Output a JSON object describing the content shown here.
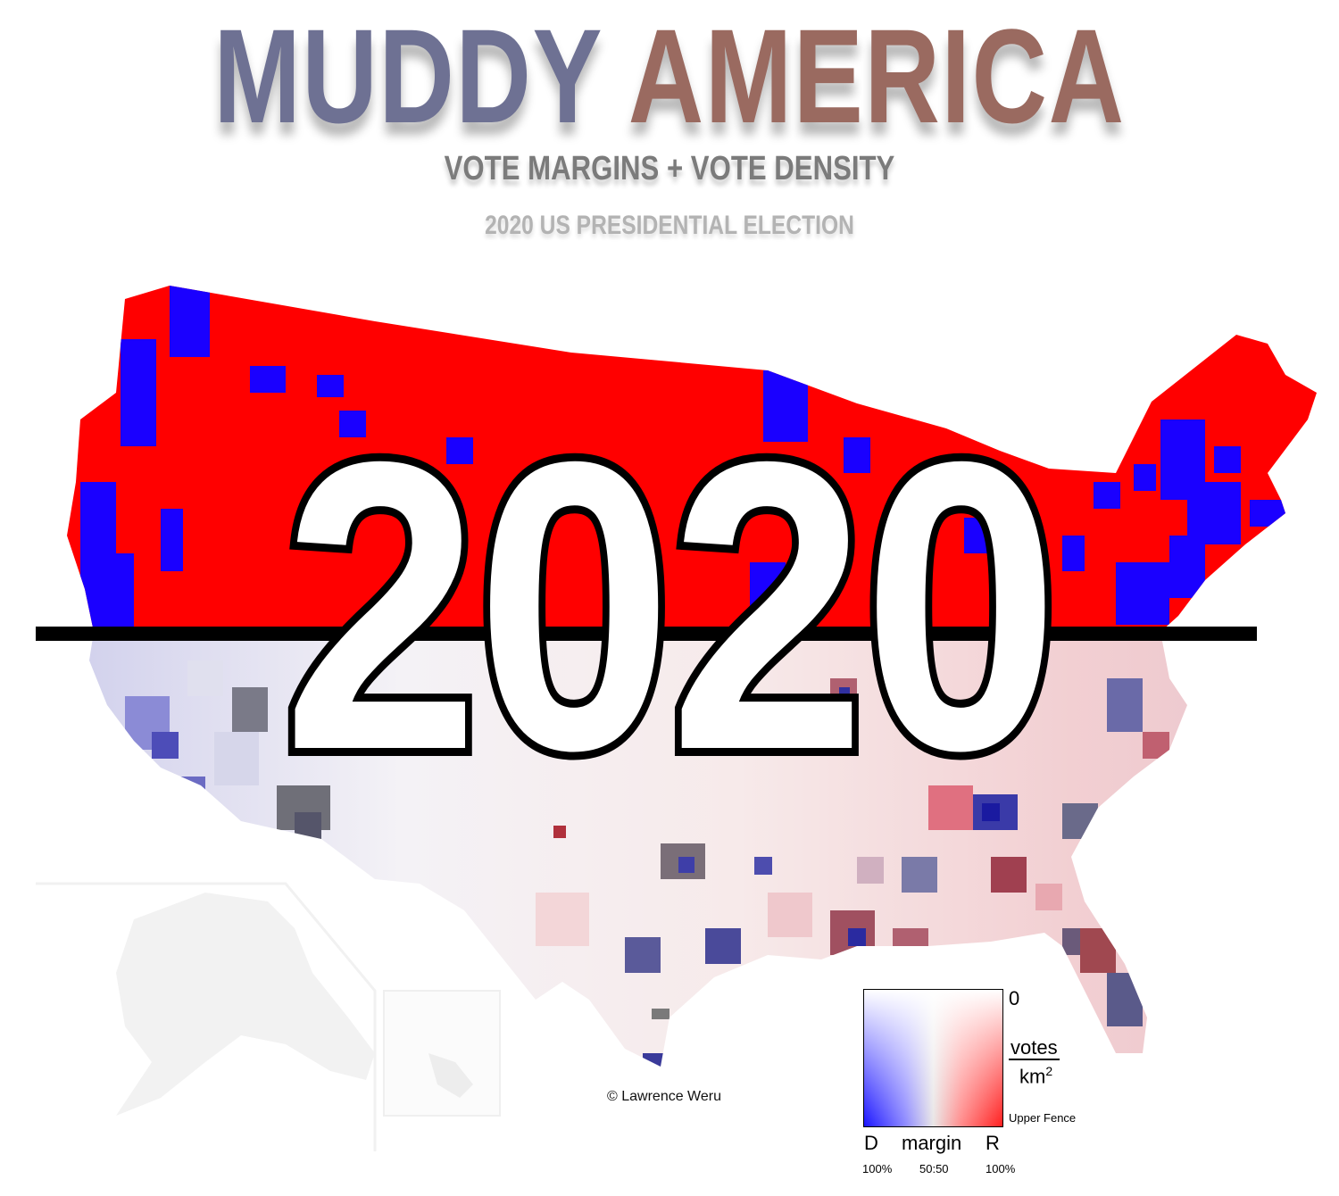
{
  "header": {
    "title_word1": "MUDDY",
    "title_word2": "AMERICA",
    "subtitle": "VOTE MARGINS + VOTE DENSITY",
    "subsubtitle": "2020 US PRESIDENTIAL ELECTION"
  },
  "overlay": {
    "year": "2020"
  },
  "credit": "© Lawrence Weru",
  "legend": {
    "top_label": "0",
    "density_numerator": "votes",
    "density_denominator": "km",
    "density_exponent": "2",
    "bottom_label": "Upper Fence",
    "left_label": "D",
    "axis_label": "margin",
    "right_label": "R",
    "left_pct": "100%",
    "mid_pct": "50:50",
    "right_pct": "100%"
  },
  "colors": {
    "title_word1": "#6e7193",
    "title_word2": "#9a6a60",
    "republican": "#ff0000",
    "democrat": "#1a00ff",
    "neutral": "#e9e6e6"
  }
}
